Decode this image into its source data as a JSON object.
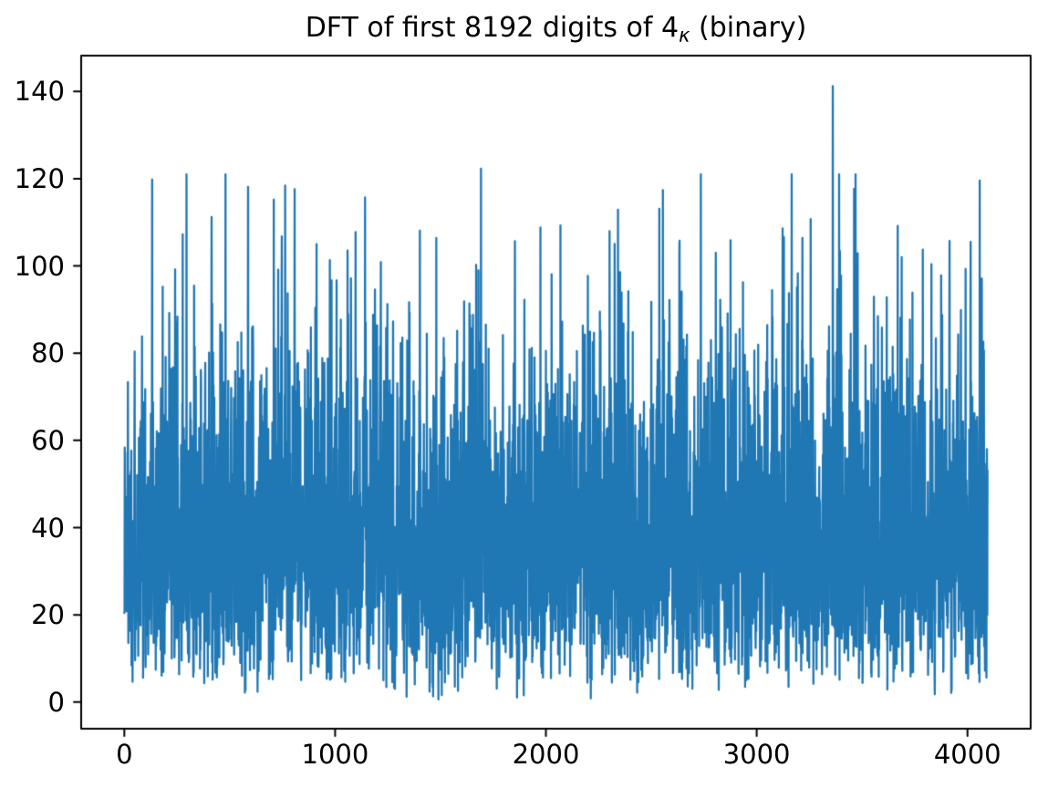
{
  "figure": {
    "background": "#ffffff",
    "title": {
      "prefix": "DFT of first 8192 digits of 4",
      "subscript": "κ",
      "suffix": " (binary)",
      "full": "DFT of first 8192 digits of 4κ (binary)"
    }
  },
  "chart_data": {
    "type": "line",
    "title": "DFT of first 8192 digits of 4κ (binary)",
    "xlabel": "",
    "ylabel": "",
    "grid": false,
    "legend": false,
    "line_color": "#1f77b4",
    "axes_color": "#000000",
    "x_tick_labels": [
      "0",
      "1000",
      "2000",
      "3000",
      "4000"
    ],
    "x_tick_values": [
      0,
      1000,
      2000,
      3000,
      4000
    ],
    "y_tick_labels": [
      "0",
      "20",
      "40",
      "60",
      "80",
      "100",
      "120",
      "140"
    ],
    "y_tick_values": [
      0,
      20,
      40,
      60,
      80,
      100,
      120,
      140
    ],
    "xlim": [
      -204.75,
      4299.75
    ],
    "ylim": [
      -6.1,
      148.2
    ],
    "n_points": 4096,
    "x_start": 0,
    "x_step": 1,
    "value_stats": {
      "distribution": "rayleigh",
      "sigma": 32,
      "mean": 40,
      "min": 0.7,
      "max": 141.2,
      "dense_band": [
        18,
        62
      ]
    },
    "seed": 1337,
    "clamp_min": 0.6,
    "clamp_max": 121,
    "notable_peaks": [
      {
        "x": 132,
        "y": 119.8
      },
      {
        "x": 414,
        "y": 111.2
      },
      {
        "x": 587,
        "y": 118.1
      },
      {
        "x": 709,
        "y": 115.2
      },
      {
        "x": 808,
        "y": 117.6
      },
      {
        "x": 912,
        "y": 105.0
      },
      {
        "x": 1402,
        "y": 108.1
      },
      {
        "x": 1692,
        "y": 122.3
      },
      {
        "x": 1974,
        "y": 108.8
      },
      {
        "x": 2069,
        "y": 109.3
      },
      {
        "x": 2342,
        "y": 112.9
      },
      {
        "x": 2555,
        "y": 117.4
      },
      {
        "x": 2633,
        "y": 103.1
      },
      {
        "x": 2876,
        "y": 105.9
      },
      {
        "x": 3123,
        "y": 108.6
      },
      {
        "x": 3361,
        "y": 141.2
      },
      {
        "x": 3395,
        "y": 103.4
      },
      {
        "x": 3669,
        "y": 109.2
      },
      {
        "x": 3829,
        "y": 100.4
      },
      {
        "x": 3915,
        "y": 105.7
      },
      {
        "x": 4015,
        "y": 105.5
      },
      {
        "x": 4058,
        "y": 119.6
      }
    ]
  }
}
